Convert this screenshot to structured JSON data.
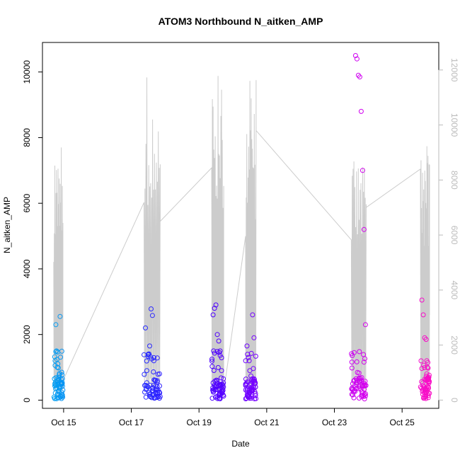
{
  "chart_data": {
    "type": "scatter",
    "title": "ATOM3 Northbound N_aitken_AMP",
    "xlabel": "Date",
    "ylabel": "N_aitken_AMP",
    "x_ticks": [
      "Oct 15",
      "Oct 17",
      "Oct 19",
      "Oct 21",
      "Oct 23",
      "Oct 25"
    ],
    "x_tick_dates": [
      "2016-10-15",
      "2016-10-17",
      "2016-10-19",
      "2016-10-21",
      "2016-10-23",
      "2016-10-25"
    ],
    "xlim": [
      "2016-10-14 09:00",
      "2016-10-26 02:00"
    ],
    "ylim": [
      -250,
      10900
    ],
    "y_ticks": [
      0,
      2000,
      4000,
      6000,
      8000,
      10000
    ],
    "y2_ticks": [
      0,
      2000,
      4000,
      6000,
      8000,
      10000,
      12000
    ],
    "y2lim": [
      -300,
      13000
    ],
    "grid": false,
    "colors": {
      "line": "#cccccc",
      "right_axis": "#bbbbbb",
      "point_gradient": [
        "#00b0f0",
        "#1e40ff",
        "#4000ff",
        "#9000ff",
        "#d000f0",
        "#ff10c0"
      ]
    },
    "series": [
      {
        "x": [
          "2016-10-14 18:00",
          "2016-10-14 18:30",
          "2016-10-14 19:00",
          "2016-10-14 19:30",
          "2016-10-14 20:00",
          "2016-10-14 20:30",
          "2016-10-14 21:00",
          "2016-10-14 21:30",
          "2016-10-14 22:00",
          "2016-10-14 22:30",
          "2016-10-14 23:00"
        ],
        "y": [
          1200,
          2300,
          1500,
          1000,
          600,
          300,
          700,
          2550,
          100,
          50,
          500
        ]
      },
      {
        "x": [
          "2016-10-17 10:00",
          "2016-10-17 11:00",
          "2016-10-17 12:00",
          "2016-10-17 13:00",
          "2016-10-17 14:00",
          "2016-10-17 15:00",
          "2016-10-17 16:00",
          "2016-10-17 17:00",
          "2016-10-17 18:00",
          "2016-10-17 19:00",
          "2016-10-17 20:00"
        ],
        "y": [
          2200,
          900,
          1400,
          1650,
          2780,
          2580,
          1200,
          600,
          300,
          100,
          800
        ]
      },
      {
        "x": [
          "2016-10-19 10:00",
          "2016-10-19 11:00",
          "2016-10-19 12:00",
          "2016-10-19 13:00",
          "2016-10-19 14:00",
          "2016-10-19 15:00",
          "2016-10-19 16:00",
          "2016-10-19 17:00"
        ],
        "y": [
          2600,
          2800,
          2900,
          2000,
          1800,
          1500,
          900,
          300
        ]
      },
      {
        "x": [
          "2016-10-20 10:00",
          "2016-10-20 11:00",
          "2016-10-20 12:00",
          "2016-10-20 13:00",
          "2016-10-20 14:00",
          "2016-10-20 15:00",
          "2016-10-20 16:00"
        ],
        "y": [
          1650,
          1300,
          900,
          500,
          2600,
          1900,
          400
        ]
      },
      {
        "x": [
          "2016-10-23 13:00",
          "2016-10-23 14:00",
          "2016-10-23 15:00",
          "2016-10-23 16:00",
          "2016-10-23 17:00",
          "2016-10-23 18:00",
          "2016-10-23 19:00",
          "2016-10-23 20:00",
          "2016-10-23 21:00",
          "2016-10-23 22:00"
        ],
        "y": [
          500,
          1450,
          10500,
          10400,
          9900,
          9850,
          8800,
          7000,
          5200,
          2300
        ]
      },
      {
        "x": [
          "2016-10-25 14:00",
          "2016-10-25 15:00",
          "2016-10-25 16:00",
          "2016-10-25 17:00",
          "2016-10-25 18:00",
          "2016-10-25 19:00"
        ],
        "y": [
          3050,
          2600,
          1900,
          1850,
          1000,
          700
        ]
      }
    ]
  }
}
